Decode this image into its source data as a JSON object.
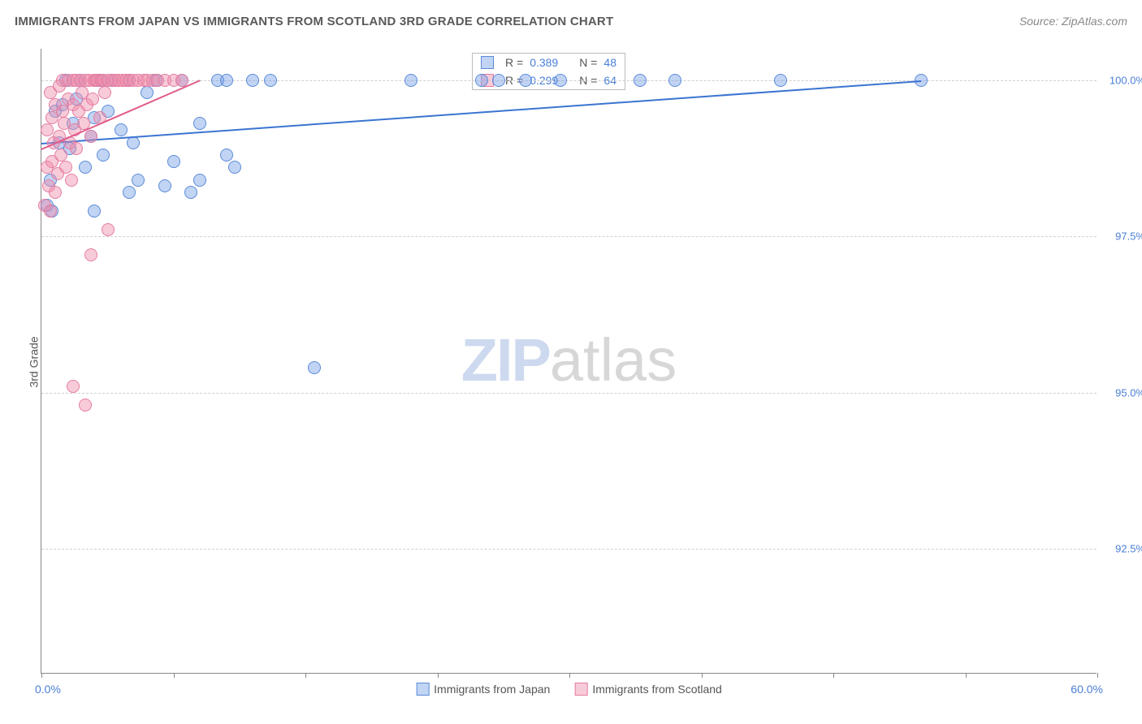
{
  "title": "IMMIGRANTS FROM JAPAN VS IMMIGRANTS FROM SCOTLAND 3RD GRADE CORRELATION CHART",
  "source": "Source: ZipAtlas.com",
  "axis": {
    "y_title": "3rd Grade",
    "x_min_label": "0.0%",
    "x_max_label": "60.0%",
    "xlim": [
      0,
      60
    ],
    "ylim": [
      90.5,
      100.5
    ],
    "y_ticks": [
      92.5,
      95.0,
      97.5,
      100.0
    ],
    "y_tick_labels": [
      "92.5%",
      "95.0%",
      "97.5%",
      "100.0%"
    ],
    "x_ticks": [
      0,
      7.5,
      15,
      22.5,
      30,
      37.5,
      45,
      52.5,
      60
    ],
    "grid_color": "#d0d0d0",
    "axis_color": "#888888",
    "ylabel_color": "#4a7fd6"
  },
  "series": [
    {
      "name": "Immigrants from Japan",
      "fill": "rgba(120,160,230,0.45)",
      "stroke": "#5a8bd8",
      "trend_color": "#3b74d1",
      "R": "0.389",
      "N": "48",
      "trend": {
        "x1": 0,
        "y1": 99.0,
        "x2": 50,
        "y2": 100.0
      },
      "points": [
        [
          0.3,
          98.0
        ],
        [
          0.5,
          98.4
        ],
        [
          0.6,
          97.9
        ],
        [
          0.8,
          99.5
        ],
        [
          1.0,
          99.0
        ],
        [
          1.2,
          99.6
        ],
        [
          1.4,
          100.0
        ],
        [
          1.6,
          98.9
        ],
        [
          1.8,
          99.3
        ],
        [
          2.0,
          99.7
        ],
        [
          2.2,
          100.0
        ],
        [
          2.5,
          98.6
        ],
        [
          2.8,
          99.1
        ],
        [
          3.0,
          99.4
        ],
        [
          3.0,
          97.9
        ],
        [
          3.3,
          100.0
        ],
        [
          3.5,
          98.8
        ],
        [
          3.8,
          99.5
        ],
        [
          4.0,
          100.0
        ],
        [
          4.5,
          99.2
        ],
        [
          5.0,
          100.0
        ],
        [
          5.0,
          98.2
        ],
        [
          5.2,
          99.0
        ],
        [
          5.5,
          98.4
        ],
        [
          6.0,
          99.8
        ],
        [
          6.5,
          100.0
        ],
        [
          7.0,
          98.3
        ],
        [
          7.5,
          98.7
        ],
        [
          8.0,
          100.0
        ],
        [
          8.5,
          98.2
        ],
        [
          9.0,
          98.4
        ],
        [
          9.0,
          99.3
        ],
        [
          10.0,
          100.0
        ],
        [
          10.5,
          100.0
        ],
        [
          10.5,
          98.8
        ],
        [
          11.0,
          98.6
        ],
        [
          12.0,
          100.0
        ],
        [
          13.0,
          100.0
        ],
        [
          15.5,
          95.4
        ],
        [
          21.0,
          100.0
        ],
        [
          25.0,
          100.0
        ],
        [
          26.0,
          100.0
        ],
        [
          27.5,
          100.0
        ],
        [
          29.5,
          100.0
        ],
        [
          34.0,
          100.0
        ],
        [
          36.0,
          100.0
        ],
        [
          42.0,
          100.0
        ],
        [
          50.0,
          100.0
        ]
      ]
    },
    {
      "name": "Immigrants from Scotland",
      "fill": "rgba(240,140,170,0.45)",
      "stroke": "#e47da0",
      "trend_color": "#e15b88",
      "R": "0.299",
      "N": "64",
      "trend": {
        "x1": 0,
        "y1": 98.9,
        "x2": 9,
        "y2": 100.0
      },
      "points": [
        [
          0.2,
          98.0
        ],
        [
          0.3,
          98.6
        ],
        [
          0.3,
          99.2
        ],
        [
          0.4,
          98.3
        ],
        [
          0.5,
          99.8
        ],
        [
          0.5,
          97.9
        ],
        [
          0.6,
          98.7
        ],
        [
          0.6,
          99.4
        ],
        [
          0.7,
          99.0
        ],
        [
          0.8,
          98.2
        ],
        [
          0.8,
          99.6
        ],
        [
          0.9,
          98.5
        ],
        [
          1.0,
          99.1
        ],
        [
          1.0,
          99.9
        ],
        [
          1.1,
          98.8
        ],
        [
          1.2,
          99.5
        ],
        [
          1.2,
          100.0
        ],
        [
          1.3,
          99.3
        ],
        [
          1.4,
          98.6
        ],
        [
          1.5,
          99.7
        ],
        [
          1.5,
          100.0
        ],
        [
          1.6,
          99.0
        ],
        [
          1.7,
          98.4
        ],
        [
          1.8,
          99.6
        ],
        [
          1.8,
          100.0
        ],
        [
          1.9,
          99.2
        ],
        [
          2.0,
          100.0
        ],
        [
          2.0,
          98.9
        ],
        [
          2.1,
          99.5
        ],
        [
          2.2,
          100.0
        ],
        [
          2.3,
          99.8
        ],
        [
          2.4,
          99.3
        ],
        [
          2.5,
          100.0
        ],
        [
          2.6,
          99.6
        ],
        [
          2.7,
          100.0
        ],
        [
          2.8,
          99.1
        ],
        [
          2.9,
          99.7
        ],
        [
          3.0,
          100.0
        ],
        [
          3.1,
          100.0
        ],
        [
          3.2,
          100.0
        ],
        [
          3.3,
          99.4
        ],
        [
          3.4,
          100.0
        ],
        [
          3.5,
          100.0
        ],
        [
          3.6,
          99.8
        ],
        [
          3.8,
          100.0
        ],
        [
          4.0,
          100.0
        ],
        [
          4.2,
          100.0
        ],
        [
          4.4,
          100.0
        ],
        [
          4.6,
          100.0
        ],
        [
          4.8,
          100.0
        ],
        [
          5.0,
          100.0
        ],
        [
          5.2,
          100.0
        ],
        [
          5.5,
          100.0
        ],
        [
          5.8,
          100.0
        ],
        [
          6.0,
          100.0
        ],
        [
          6.3,
          100.0
        ],
        [
          6.6,
          100.0
        ],
        [
          7.0,
          100.0
        ],
        [
          7.5,
          100.0
        ],
        [
          8.0,
          100.0
        ],
        [
          1.8,
          95.1
        ],
        [
          2.5,
          94.8
        ],
        [
          2.8,
          97.2
        ],
        [
          3.8,
          97.6
        ]
      ]
    }
  ],
  "stats_legend": {
    "label_R": "R =",
    "label_N": "N ="
  },
  "watermark": {
    "part1": "ZIP",
    "part2": "atlas"
  }
}
